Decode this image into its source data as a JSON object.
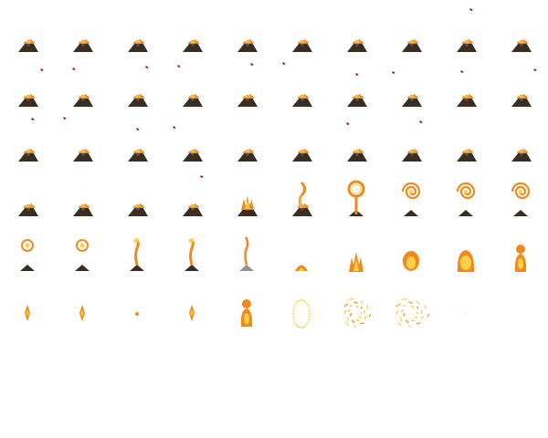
{
  "sheet": {
    "name": "volcano-eruption-fire-spirit-sprite-sheet",
    "columns": 10,
    "rows": 6,
    "colors": {
      "rock": "#3a2e22",
      "rock_light": "#5a4a36",
      "ash_rock": "#9a9087",
      "lava_orange": "#f08a1c",
      "lava_yellow": "#ffd04a",
      "ember_red": "#c8361c",
      "spark_yellow": "#f4cf3a",
      "debris": "#8a3a22"
    },
    "frames": [
      {
        "row": 0,
        "col": 0,
        "kind": "volcano"
      },
      {
        "row": 0,
        "col": 1,
        "kind": "volcano"
      },
      {
        "row": 0,
        "col": 2,
        "kind": "volcano"
      },
      {
        "row": 0,
        "col": 3,
        "kind": "volcano"
      },
      {
        "row": 0,
        "col": 4,
        "kind": "volcano"
      },
      {
        "row": 0,
        "col": 5,
        "kind": "volcano"
      },
      {
        "row": 0,
        "col": 6,
        "kind": "volcano"
      },
      {
        "row": 0,
        "col": 7,
        "kind": "volcano"
      },
      {
        "row": 0,
        "col": 8,
        "kind": "volcano",
        "debris": true
      },
      {
        "row": 0,
        "col": 9,
        "kind": "volcano"
      },
      {
        "row": 1,
        "col": 0,
        "kind": "volcano",
        "debris": true
      },
      {
        "row": 1,
        "col": 1,
        "kind": "volcano",
        "debris": true
      },
      {
        "row": 1,
        "col": 2,
        "kind": "volcano",
        "debris": true
      },
      {
        "row": 1,
        "col": 3,
        "kind": "volcano",
        "debris": true
      },
      {
        "row": 1,
        "col": 4,
        "kind": "volcano",
        "debris": true
      },
      {
        "row": 1,
        "col": 5,
        "kind": "volcano",
        "debris": true
      },
      {
        "row": 1,
        "col": 6,
        "kind": "volcano",
        "debris": true
      },
      {
        "row": 1,
        "col": 7,
        "kind": "volcano",
        "debris": true
      },
      {
        "row": 1,
        "col": 8,
        "kind": "volcano",
        "debris": true
      },
      {
        "row": 1,
        "col": 9,
        "kind": "volcano",
        "debris": true
      },
      {
        "row": 2,
        "col": 0,
        "kind": "volcano",
        "debris": true
      },
      {
        "row": 2,
        "col": 1,
        "kind": "volcano",
        "debris": true
      },
      {
        "row": 2,
        "col": 2,
        "kind": "volcano",
        "debris": true
      },
      {
        "row": 2,
        "col": 3,
        "kind": "volcano",
        "debris": true
      },
      {
        "row": 2,
        "col": 4,
        "kind": "volcano"
      },
      {
        "row": 2,
        "col": 5,
        "kind": "volcano"
      },
      {
        "row": 2,
        "col": 6,
        "kind": "volcano",
        "debris": true
      },
      {
        "row": 2,
        "col": 7,
        "kind": "volcano",
        "debris": true
      },
      {
        "row": 2,
        "col": 8,
        "kind": "volcano"
      },
      {
        "row": 2,
        "col": 9,
        "kind": "volcano"
      },
      {
        "row": 3,
        "col": 0,
        "kind": "volcano"
      },
      {
        "row": 3,
        "col": 1,
        "kind": "volcano"
      },
      {
        "row": 3,
        "col": 2,
        "kind": "volcano"
      },
      {
        "row": 3,
        "col": 3,
        "kind": "volcano",
        "debris": true
      },
      {
        "row": 3,
        "col": 4,
        "kind": "fire-burst"
      },
      {
        "row": 3,
        "col": 5,
        "kind": "fire-ribbon"
      },
      {
        "row": 3,
        "col": 6,
        "kind": "fire-loop"
      },
      {
        "row": 3,
        "col": 7,
        "kind": "fire-spiral"
      },
      {
        "row": 3,
        "col": 8,
        "kind": "fire-spiral"
      },
      {
        "row": 3,
        "col": 9,
        "kind": "fire-spiral"
      },
      {
        "row": 4,
        "col": 0,
        "kind": "spiral-small"
      },
      {
        "row": 4,
        "col": 1,
        "kind": "spiral-small"
      },
      {
        "row": 4,
        "col": 2,
        "kind": "wisp"
      },
      {
        "row": 4,
        "col": 3,
        "kind": "wisp"
      },
      {
        "row": 4,
        "col": 4,
        "kind": "wisp-ash"
      },
      {
        "row": 4,
        "col": 5,
        "kind": "ember-mound"
      },
      {
        "row": 4,
        "col": 6,
        "kind": "flame-rise"
      },
      {
        "row": 4,
        "col": 7,
        "kind": "flame-orb"
      },
      {
        "row": 4,
        "col": 8,
        "kind": "flame-blob"
      },
      {
        "row": 4,
        "col": 9,
        "kind": "fire-spirit"
      },
      {
        "row": 5,
        "col": 0,
        "kind": "spark"
      },
      {
        "row": 5,
        "col": 1,
        "kind": "spark"
      },
      {
        "row": 5,
        "col": 2,
        "kind": "spark-tiny"
      },
      {
        "row": 5,
        "col": 3,
        "kind": "spark"
      },
      {
        "row": 5,
        "col": 4,
        "kind": "fire-spirit"
      },
      {
        "row": 5,
        "col": 5,
        "kind": "spirit-dots"
      },
      {
        "row": 5,
        "col": 6,
        "kind": "spirit-burst"
      },
      {
        "row": 5,
        "col": 7,
        "kind": "spirit-burst-wide"
      },
      {
        "row": 5,
        "col": 8,
        "kind": "fade"
      },
      {
        "row": 5,
        "col": 9,
        "kind": "empty"
      }
    ]
  }
}
